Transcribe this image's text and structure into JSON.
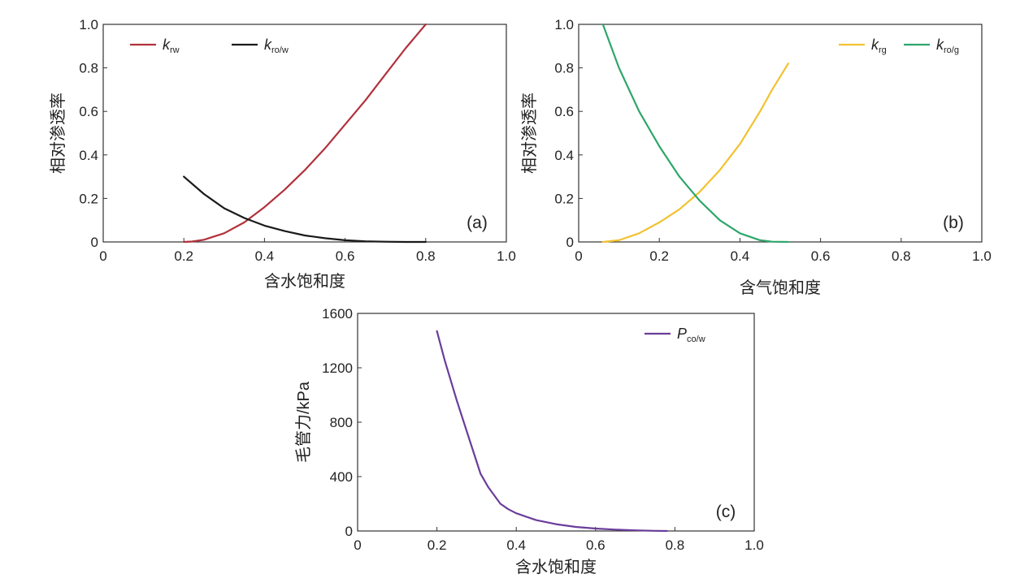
{
  "chart_data": [
    {
      "id": "a",
      "type": "line",
      "panel_label": "(a)",
      "xlabel": "含水饱和度",
      "ylabel": "相对渗透率",
      "xlim": [
        0,
        1.0
      ],
      "ylim": [
        0,
        1.0
      ],
      "xticks": [
        "0",
        "0.2",
        "0.4",
        "0.6",
        "0.8",
        "1.0"
      ],
      "yticks": [
        "0",
        "0.2",
        "0.4",
        "0.6",
        "0.8",
        "1.0"
      ],
      "legend_position": "top-left",
      "series": [
        {
          "name_main": "k",
          "name_sub": "rw",
          "color": "#b2313b",
          "x": [
            0.2,
            0.22,
            0.25,
            0.3,
            0.35,
            0.4,
            0.45,
            0.5,
            0.55,
            0.6,
            0.65,
            0.7,
            0.75,
            0.8
          ],
          "y": [
            0.0,
            0.002,
            0.01,
            0.04,
            0.09,
            0.16,
            0.24,
            0.33,
            0.43,
            0.54,
            0.65,
            0.77,
            0.89,
            1.0
          ]
        },
        {
          "name_main": "k",
          "name_sub": "ro/w",
          "color": "#1a1a1a",
          "x": [
            0.2,
            0.25,
            0.3,
            0.35,
            0.4,
            0.45,
            0.5,
            0.55,
            0.6,
            0.65,
            0.7,
            0.75,
            0.8
          ],
          "y": [
            0.3,
            0.22,
            0.155,
            0.11,
            0.075,
            0.05,
            0.03,
            0.017,
            0.008,
            0.003,
            0.001,
            0.0,
            0.0
          ]
        }
      ]
    },
    {
      "id": "b",
      "type": "line",
      "panel_label": "(b)",
      "xlabel": "含气饱和度",
      "ylabel": "相对渗透率",
      "xlim": [
        0,
        1.0
      ],
      "ylim": [
        0,
        1.0
      ],
      "xticks": [
        "0",
        "0.2",
        "0.4",
        "0.6",
        "0.8",
        "1.0"
      ],
      "yticks": [
        "0",
        "0.2",
        "0.4",
        "0.6",
        "0.8",
        "1.0"
      ],
      "legend_position": "top-right",
      "series": [
        {
          "name_main": "k",
          "name_sub": "rg",
          "color": "#f2c230",
          "x": [
            0.06,
            0.1,
            0.15,
            0.2,
            0.25,
            0.3,
            0.35,
            0.4,
            0.45,
            0.48,
            0.52
          ],
          "y": [
            0.0,
            0.008,
            0.04,
            0.09,
            0.15,
            0.23,
            0.33,
            0.45,
            0.6,
            0.7,
            0.82
          ]
        },
        {
          "name_main": "k",
          "name_sub": "ro/g",
          "color": "#2ea66b",
          "x": [
            0.06,
            0.1,
            0.15,
            0.2,
            0.25,
            0.3,
            0.35,
            0.4,
            0.45,
            0.48,
            0.52
          ],
          "y": [
            1.0,
            0.8,
            0.6,
            0.44,
            0.3,
            0.19,
            0.1,
            0.04,
            0.008,
            0.001,
            0.0
          ]
        }
      ]
    },
    {
      "id": "c",
      "type": "line",
      "panel_label": "(c)",
      "xlabel": "含水饱和度",
      "ylabel": "毛管力/kPa",
      "xlim": [
        0,
        1.0
      ],
      "ylim": [
        0,
        1600
      ],
      "xticks": [
        "0",
        "0.2",
        "0.4",
        "0.6",
        "0.8",
        "1.0"
      ],
      "yticks": [
        "0",
        "400",
        "800",
        "1200",
        "1600"
      ],
      "legend_position": "top-right",
      "series": [
        {
          "name_main": "P",
          "name_sub": "co/w",
          "color": "#6a3d9a",
          "x": [
            0.2,
            0.22,
            0.25,
            0.28,
            0.31,
            0.33,
            0.36,
            0.38,
            0.4,
            0.45,
            0.5,
            0.55,
            0.6,
            0.65,
            0.7,
            0.75,
            0.78
          ],
          "y": [
            1470,
            1250,
            960,
            690,
            420,
            320,
            200,
            160,
            130,
            80,
            50,
            30,
            18,
            10,
            5,
            1,
            0
          ]
        }
      ]
    }
  ]
}
